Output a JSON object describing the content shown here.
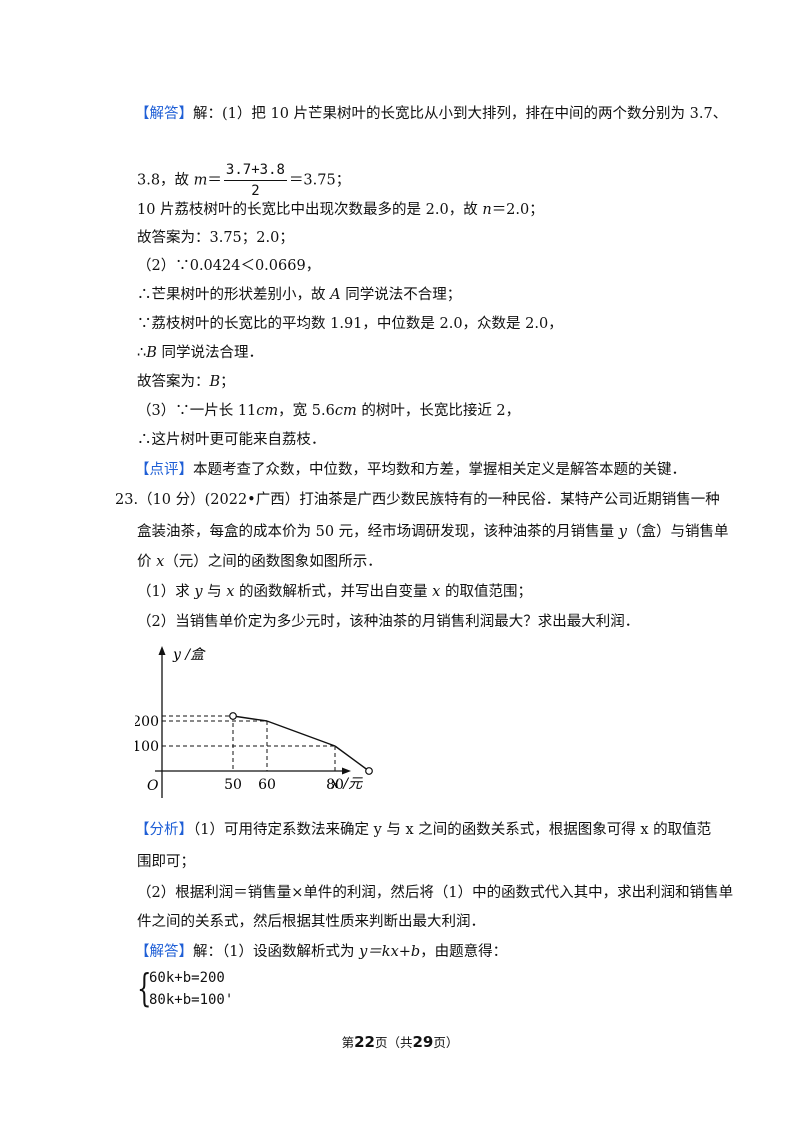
{
  "l1": {
    "tag": "【解答】",
    "text": "解：(1）把 10 片芒果树叶的长宽比从小到大排列，排在中间的两个数分别为 3.7、"
  },
  "l2": {
    "pre": "3.8，故 ",
    "var": "m",
    "eq": "＝",
    "num": "3.7+3.8",
    "den": "2",
    "post": "＝3.75；"
  },
  "l3": {
    "pre": "10 片荔枝树叶的长宽比中出现次数最多的是 2.0，故 ",
    "var": "n",
    "post": "＝2.0；"
  },
  "l4": "故答案为：3.75；2.0；",
  "l5": "（2）∵0.0424＜0.0669，",
  "l6": {
    "pre": "∴芒果树叶的形状差别小，故 ",
    "var": "A",
    "post": " 同学说法不合理；"
  },
  "l7": "∵荔枝树叶的长宽比的平均数 1.91，中位数是 2.0，众数是 2.0，",
  "l8": {
    "pre": "∴",
    "var": "B",
    "post": " 同学说法合理．"
  },
  "l9": {
    "pre": "故答案为：",
    "var": "B",
    "post": "；"
  },
  "l10": {
    "p1": "（3）∵一片长 11",
    "u1": "cm",
    "p2": "，宽 5.6",
    "u2": "cm",
    "p3": " 的树叶，长宽比接近 2，"
  },
  "l11": "∴这片树叶更可能来自荔枝．",
  "l12": {
    "tag": "【点评】",
    "text": "本题考查了众数，中位数，平均数和方差，掌握相关定义是解答本题的关键．"
  },
  "q1": "23.（10 分）(2022•广西）打油茶是广西少数民族特有的一种民俗．某特产公司近期销售一种",
  "q2": "盒装油茶，每盒的成本价为 50 元，经市场调研发现，该种油茶的月销售量 ",
  "q2b": "（盒）与销售单",
  "q3a": "价 ",
  "q3b": "（元）之间的函数图象如图所示．",
  "qvar_y": "y",
  "qvar_x": "x",
  "p1": {
    "a": "（1）求 ",
    "b": " 与 ",
    "c": " 的函数解析式，并写出自变量 ",
    "d": " 的取值范围；"
  },
  "p2": "（2）当销售单价定为多少元时，该种油茶的月销售利润最大？求出最大利润．",
  "chart_data": {
    "type": "line",
    "x_axis_label": "x /元",
    "y_axis_label": "y /盒",
    "origin_label": "O",
    "x_ticks": [
      "50",
      "60",
      "80"
    ],
    "y_ticks": [
      "200",
      "100"
    ],
    "points": [
      {
        "x": 50,
        "y": 220,
        "open": true
      },
      {
        "x": 60,
        "y": 200
      },
      {
        "x": 80,
        "y": 100
      },
      {
        "x": 90,
        "y": 0,
        "open": true
      }
    ]
  },
  "a1": {
    "tag": "【分析】",
    "text": "（1）可用待定系数法来确定 y 与 x 之间的函数关系式，根据图象可得 x 的取值范"
  },
  "a2": "围即可；",
  "a3": "（2）根据利润＝销售量×单件的利润，然后将（1）中的函数式代入其中，求出利润和销售单",
  "a4": "件之间的关系式，然后根据其性质来判断出最大利润．",
  "a5": {
    "tag": "【解答】",
    "pre": "解：（1）设函数解析式为 ",
    "expr": "y＝kx+b",
    "post": "，由题意得："
  },
  "sys": {
    "eq1": "60k+b=200",
    "eq2": "80k+b=100'"
  },
  "footer": {
    "pre": "第",
    "page": "22",
    "mid": "页（共",
    "total": "29",
    "post": "页）"
  }
}
